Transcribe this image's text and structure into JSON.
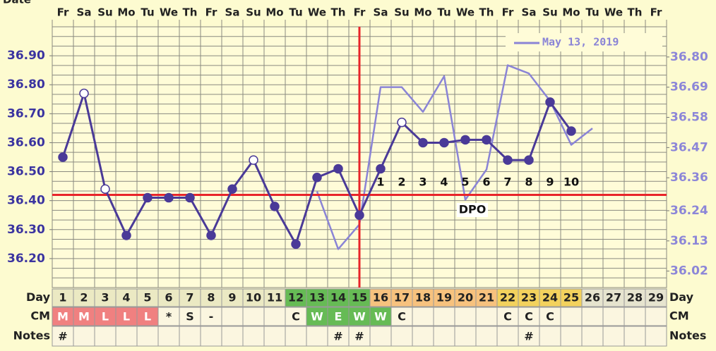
{
  "chart_data": {
    "type": "line",
    "date_label": "Date",
    "weekdays": [
      "Fr",
      "Sa",
      "Su",
      "Mo",
      "Tu",
      "We",
      "Th",
      "Fr",
      "Sa",
      "Su",
      "Mo",
      "Tu",
      "We",
      "Th",
      "Fr",
      "Sa",
      "Su",
      "Mo",
      "Tu",
      "We",
      "Th",
      "Fr",
      "Sa",
      "Su",
      "Mo",
      "Tu",
      "We",
      "Th",
      "Fr"
    ],
    "categories": [
      1,
      2,
      3,
      4,
      5,
      6,
      7,
      8,
      9,
      10,
      11,
      12,
      13,
      14,
      15,
      16,
      17,
      18,
      19,
      20,
      21,
      22,
      23,
      24,
      25,
      26,
      27,
      28,
      29
    ],
    "ylim": [
      36.1,
      37.0
    ],
    "yticks": [
      {
        "value": 36.2,
        "label": "36.20"
      },
      {
        "value": 36.3,
        "label": "36.30"
      },
      {
        "value": 36.4,
        "label": "36.40"
      },
      {
        "value": 36.5,
        "label": "36.50"
      },
      {
        "value": 36.6,
        "label": "36.60"
      },
      {
        "value": 36.7,
        "label": "36.70"
      },
      {
        "value": 36.8,
        "label": "36.80"
      },
      {
        "value": 36.9,
        "label": "36.90"
      }
    ],
    "y2lim": [
      35.96,
      36.91
    ],
    "y2ticks": [
      36.02,
      36.13,
      36.24,
      36.36,
      36.47,
      36.58,
      36.69,
      {
        "value": 36.8,
        "label": "36.80"
      }
    ],
    "grid": true,
    "legend": "top-right",
    "series": [
      {
        "color": "#4a3a98",
        "values": [
          36.55,
          36.77,
          36.44,
          36.28,
          36.41,
          36.41,
          36.41,
          36.28,
          36.44,
          36.54,
          36.38,
          36.25,
          36.48,
          36.51,
          36.35,
          36.51,
          36.67,
          36.6,
          36.6,
          36.61,
          36.61,
          36.54,
          36.54,
          36.74,
          36.64,
          null,
          null,
          null,
          null
        ],
        "open": [
          false,
          true,
          true,
          false,
          false,
          false,
          false,
          false,
          false,
          true,
          false,
          false,
          false,
          false,
          false,
          false,
          true,
          false,
          false,
          false,
          false,
          false,
          false,
          false,
          false,
          false,
          false,
          false,
          false
        ]
      },
      {
        "name": "May 13, 2019",
        "color": "#8a84d6",
        "axis": "y2",
        "values": [
          null,
          null,
          null,
          null,
          null,
          null,
          null,
          null,
          null,
          null,
          null,
          null,
          36.31,
          36.1,
          36.19,
          36.69,
          36.69,
          36.6,
          36.73,
          36.28,
          36.39,
          36.77,
          36.74,
          36.64,
          36.48,
          36.54,
          null,
          null,
          null
        ]
      }
    ],
    "coverline": 36.42,
    "ovulation_day": 15,
    "line_color": "#e8242a",
    "dpo": {
      "title": "DPO",
      "title_day": 20,
      "days": [
        16,
        17,
        18,
        19,
        20,
        21,
        22,
        23,
        24,
        25
      ],
      "labels": [
        1,
        2,
        3,
        4,
        5,
        6,
        7,
        8,
        9,
        10
      ]
    },
    "rows": {
      "day_label": "Day",
      "cm_label": "CM",
      "notes_label": "Notes",
      "day_colors": [
        "#ebe9c3",
        "#ebe9c3",
        "#ebe9c3",
        "#ebe9c3",
        "#ebe9c3",
        "#ebe9c3",
        "#ebe9c3",
        "#ebe9c3",
        "#ebe9c3",
        "#ebe9c3",
        "#ebe9c3",
        "#66bb55",
        "#66bb55",
        "#66bb55",
        "#66bb55",
        "#f7c27e",
        "#f7c27e",
        "#f7c27e",
        "#f7c27e",
        "#f7c27e",
        "#f7c27e",
        "#f3d25d",
        "#f3d25d",
        "#f3d25d",
        "#f3d25d",
        "#e6e4cf",
        "#e6e4cf",
        "#e6e4cf",
        "#e6e4cf"
      ],
      "cm": [
        "M",
        "M",
        "L",
        "L",
        "L",
        "*",
        "S",
        "-",
        null,
        null,
        null,
        "C",
        "W",
        "E",
        "W",
        "W",
        "C",
        null,
        null,
        null,
        null,
        "C",
        "C",
        "C",
        null,
        null,
        null,
        null,
        null
      ],
      "cm_colors": [
        "#f08080",
        "#f08080",
        "#f08080",
        "#f08080",
        "#f08080",
        "#fbf6e0",
        "#fbf6e0",
        "#fbf6e0",
        "#fbf6e0",
        "#fbf6e0",
        "#fbf6e0",
        "#fbf6e0",
        "#66bb55",
        "#66bb55",
        "#66bb55",
        "#66bb55",
        "#fbf6e0",
        "#fbf6e0",
        "#fbf6e0",
        "#fbf6e0",
        "#fbf6e0",
        "#fbf6e0",
        "#fbf6e0",
        "#fbf6e0",
        "#fbf6e0",
        "#fbf6e0",
        "#fbf6e0",
        "#fbf6e0",
        "#fbf6e0"
      ],
      "notes": [
        "#",
        null,
        null,
        null,
        null,
        null,
        null,
        null,
        null,
        null,
        null,
        null,
        null,
        "#",
        "#",
        null,
        null,
        null,
        null,
        null,
        null,
        null,
        "#",
        null,
        null,
        null,
        null,
        null,
        null
      ]
    }
  }
}
